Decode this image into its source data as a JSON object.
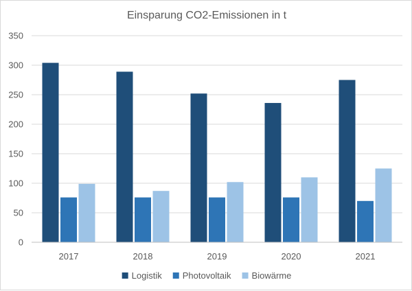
{
  "chart_data": {
    "type": "bar",
    "title": "Einsparung CO2-Emissionen in t",
    "xlabel": "",
    "ylabel": "",
    "categories": [
      "2017",
      "2018",
      "2019",
      "2020",
      "2021"
    ],
    "series": [
      {
        "name": "Logistik",
        "color": "#1f4e79",
        "values": [
          304,
          289,
          252,
          236,
          275
        ]
      },
      {
        "name": "Photovoltaik",
        "color": "#2e75b6",
        "values": [
          76,
          76,
          76,
          76,
          70
        ]
      },
      {
        "name": "Biowärme",
        "color": "#9dc3e6",
        "values": [
          99,
          87,
          102,
          110,
          125
        ]
      }
    ],
    "ylim": [
      0,
      350
    ],
    "yticks": [
      0,
      50,
      100,
      150,
      200,
      250,
      300,
      350
    ],
    "grid": true,
    "legend_position": "bottom"
  }
}
